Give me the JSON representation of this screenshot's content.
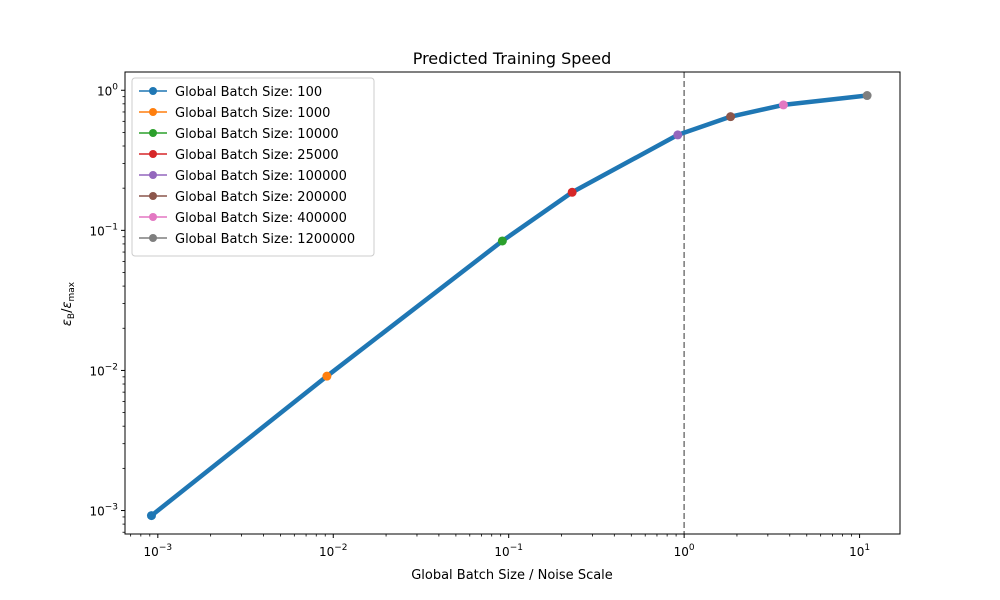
{
  "chart_data": {
    "type": "line",
    "title": "Predicted Training Speed",
    "xlabel": "Global Batch Size / Noise Scale",
    "ylabel_base": "ε",
    "ylabel_sub_num": "B",
    "ylabel_sub_den": "max",
    "xscale": "log",
    "yscale": "log",
    "xlim": [
      0.00065,
      17
    ],
    "ylim": [
      0.00068,
      1.35
    ],
    "grid": false,
    "legend_position": "upper-left",
    "x_ticks": [
      {
        "value": 0.001,
        "base": "10",
        "exp": "−3"
      },
      {
        "value": 0.01,
        "base": "10",
        "exp": "−2"
      },
      {
        "value": 0.1,
        "base": "10",
        "exp": "−1"
      },
      {
        "value": 1,
        "base": "10",
        "exp": "0"
      },
      {
        "value": 10,
        "base": "10",
        "exp": "1"
      }
    ],
    "y_ticks": [
      {
        "value": 0.001,
        "base": "10",
        "exp": "−3"
      },
      {
        "value": 0.01,
        "base": "10",
        "exp": "−2"
      },
      {
        "value": 0.1,
        "base": "10",
        "exp": "−1"
      },
      {
        "value": 1,
        "base": "10",
        "exp": "0"
      }
    ],
    "reference_line": {
      "x": 1,
      "style": "dashed",
      "color": "#7f7f7f"
    },
    "curve": {
      "color": "#1f77b4",
      "x": [
        0.00092,
        0.0092,
        0.092,
        0.23,
        0.92,
        1.84,
        3.68,
        11.04
      ],
      "y": [
        0.00092,
        0.0091,
        0.084,
        0.187,
        0.48,
        0.648,
        0.786,
        0.917
      ]
    },
    "series": [
      {
        "name": "Global Batch Size: 100",
        "x": 0.00092,
        "y": 0.00092,
        "color": "#1f77b4"
      },
      {
        "name": "Global Batch Size: 1000",
        "x": 0.0092,
        "y": 0.0091,
        "color": "#ff7f0e"
      },
      {
        "name": "Global Batch Size: 10000",
        "x": 0.092,
        "y": 0.084,
        "color": "#2ca02c"
      },
      {
        "name": "Global Batch Size: 25000",
        "x": 0.23,
        "y": 0.187,
        "color": "#d62728"
      },
      {
        "name": "Global Batch Size: 100000",
        "x": 0.92,
        "y": 0.48,
        "color": "#9467bd"
      },
      {
        "name": "Global Batch Size: 200000",
        "x": 1.84,
        "y": 0.648,
        "color": "#8c564b"
      },
      {
        "name": "Global Batch Size: 400000",
        "x": 3.68,
        "y": 0.786,
        "color": "#e377c2"
      },
      {
        "name": "Global Batch Size: 1200000",
        "x": 11.04,
        "y": 0.917,
        "color": "#7f7f7f"
      }
    ]
  }
}
